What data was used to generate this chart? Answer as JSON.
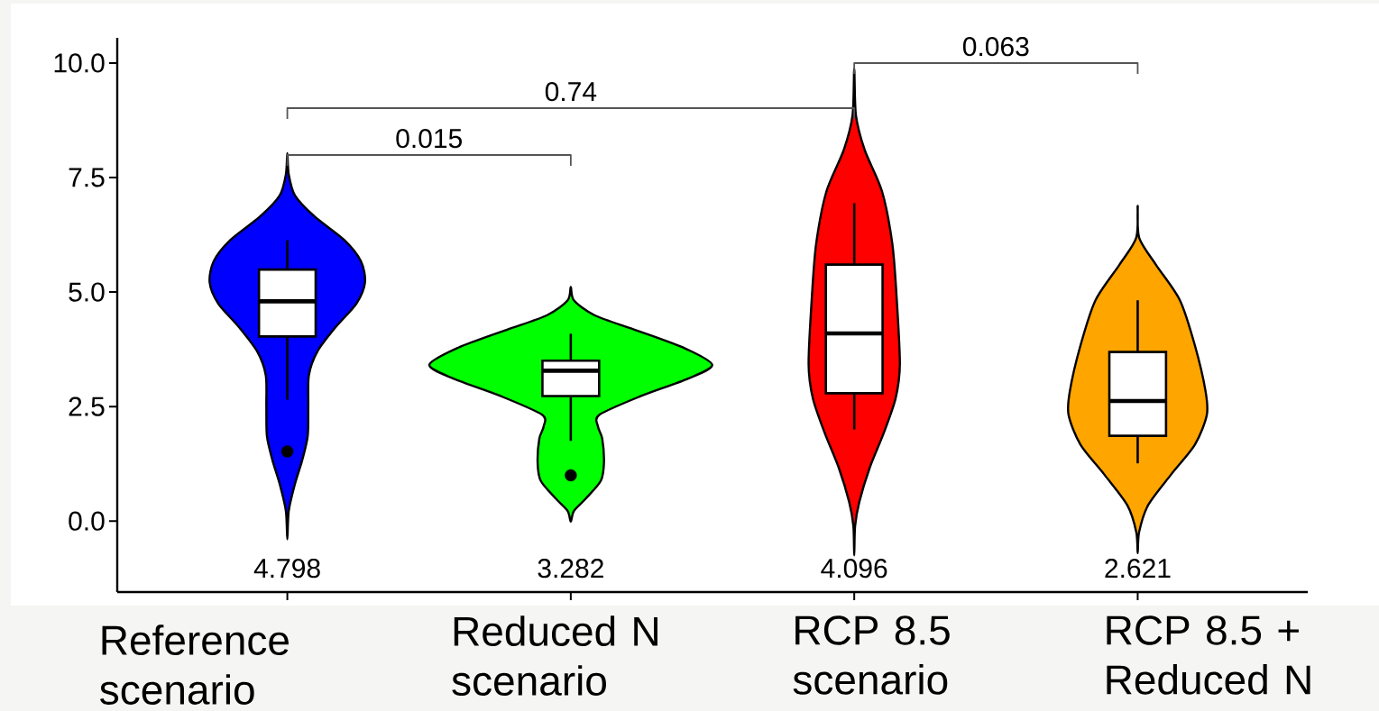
{
  "chart_data": {
    "type": "box",
    "categories": [
      "Reference scenario",
      "Reduced N scenario",
      "RCP 8.5 scenario",
      "RCP 8.5 + Reduced N"
    ],
    "boxes": [
      {
        "low": 2.65,
        "q1": 4.03,
        "median": 4.798,
        "q3": 5.49,
        "high": 6.13,
        "outliers": [
          1.52
        ]
      },
      {
        "low": 1.75,
        "q1": 2.73,
        "median": 3.282,
        "q3": 3.5,
        "high": 4.09,
        "outliers": [
          1.0
        ]
      },
      {
        "low": 2.0,
        "q1": 2.79,
        "median": 4.096,
        "q3": 5.6,
        "high": 6.94
      },
      {
        "low": 1.26,
        "q1": 1.86,
        "median": 2.621,
        "q3": 3.69,
        "high": 4.82
      }
    ],
    "value_labels": [
      "4.798",
      "3.282",
      "4.096",
      "2.621"
    ],
    "annotations": [
      "0.015",
      "0.74",
      "0.063"
    ],
    "ylim": [
      -1.55,
      10.55
    ],
    "yticks": [
      {
        "value": 0,
        "label": "0.0"
      },
      2.5,
      {
        "value": 5,
        "label": "5.0"
      },
      7.5,
      {
        "value": 10,
        "label": "10.0"
      }
    ]
  }
}
